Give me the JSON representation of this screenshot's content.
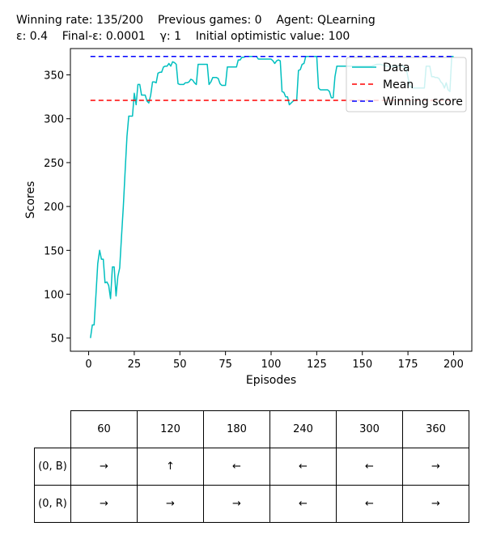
{
  "header": {
    "line1": "Winning rate: 135/200    Previous games: 0    Agent: QLearning",
    "line2": "ε: 0.4    Final-ε: 0.0001    γ: 1    Initial optimistic value: 100"
  },
  "chart_data": {
    "type": "line",
    "xlabel": "Episodes",
    "ylabel": "Scores",
    "xlim": [
      -10,
      210
    ],
    "ylim": [
      35,
      380
    ],
    "xticks": [
      0,
      25,
      50,
      75,
      100,
      125,
      150,
      175,
      200
    ],
    "yticks": [
      50,
      100,
      150,
      200,
      250,
      300,
      350
    ],
    "legend_position": "top-right",
    "legend": [
      "Data",
      "Mean",
      "Winning score"
    ],
    "series": [
      {
        "name": "Data",
        "color": "#00bfbf",
        "points": [
          [
            1,
            50
          ],
          [
            2,
            65
          ],
          [
            3,
            65
          ],
          [
            4,
            100
          ],
          [
            5,
            135
          ],
          [
            6,
            150
          ],
          [
            7,
            140
          ],
          [
            8,
            140
          ],
          [
            9,
            113
          ],
          [
            10,
            114
          ],
          [
            11,
            110
          ],
          [
            12,
            95
          ],
          [
            13,
            131
          ],
          [
            14,
            131
          ],
          [
            15,
            98
          ],
          [
            16,
            120
          ],
          [
            17,
            130
          ],
          [
            18,
            165
          ],
          [
            19,
            200
          ],
          [
            20,
            240
          ],
          [
            21,
            280
          ],
          [
            22,
            303
          ],
          [
            23,
            303
          ],
          [
            24,
            303
          ],
          [
            25,
            329
          ],
          [
            26,
            316
          ],
          [
            27,
            339
          ],
          [
            28,
            339
          ],
          [
            29,
            327
          ],
          [
            30,
            327
          ],
          [
            31,
            327
          ],
          [
            32,
            320
          ],
          [
            33,
            318
          ],
          [
            34,
            327
          ],
          [
            35,
            342
          ],
          [
            36,
            342
          ],
          [
            37,
            341
          ],
          [
            38,
            352
          ],
          [
            39,
            353
          ],
          [
            40,
            353
          ],
          [
            41,
            359
          ],
          [
            42,
            360
          ],
          [
            43,
            360
          ],
          [
            44,
            363
          ],
          [
            45,
            360
          ],
          [
            46,
            365
          ],
          [
            47,
            364
          ],
          [
            48,
            362
          ],
          [
            49,
            340
          ],
          [
            50,
            339
          ],
          [
            51,
            339
          ],
          [
            52,
            339
          ],
          [
            53,
            341
          ],
          [
            54,
            341
          ],
          [
            55,
            342
          ],
          [
            56,
            345
          ],
          [
            57,
            344
          ],
          [
            58,
            341
          ],
          [
            59,
            339
          ],
          [
            60,
            362
          ],
          [
            61,
            362
          ],
          [
            62,
            362
          ],
          [
            63,
            362
          ],
          [
            64,
            362
          ],
          [
            65,
            362
          ],
          [
            66,
            339
          ],
          [
            67,
            342
          ],
          [
            68,
            347
          ],
          [
            69,
            347
          ],
          [
            70,
            347
          ],
          [
            71,
            346
          ],
          [
            72,
            340
          ],
          [
            73,
            338
          ],
          [
            74,
            338
          ],
          [
            75,
            338
          ],
          [
            76,
            359
          ],
          [
            77,
            359
          ],
          [
            78,
            359
          ],
          [
            79,
            359
          ],
          [
            80,
            359
          ],
          [
            81,
            359
          ],
          [
            82,
            367
          ],
          [
            83,
            367
          ],
          [
            84,
            370
          ],
          [
            85,
            370
          ],
          [
            86,
            371
          ],
          [
            87,
            371
          ],
          [
            88,
            371
          ],
          [
            89,
            371
          ],
          [
            90,
            371
          ],
          [
            91,
            371
          ],
          [
            92,
            371
          ],
          [
            93,
            368
          ],
          [
            94,
            368
          ],
          [
            95,
            368
          ],
          [
            96,
            368
          ],
          [
            97,
            368
          ],
          [
            98,
            368
          ],
          [
            99,
            368
          ],
          [
            100,
            368
          ],
          [
            101,
            366
          ],
          [
            102,
            363
          ],
          [
            103,
            366
          ],
          [
            104,
            367
          ],
          [
            105,
            366
          ],
          [
            106,
            331
          ],
          [
            107,
            330
          ],
          [
            108,
            325
          ],
          [
            109,
            325
          ],
          [
            110,
            316
          ],
          [
            111,
            318
          ],
          [
            112,
            320
          ],
          [
            113,
            321
          ],
          [
            114,
            321
          ],
          [
            115,
            355
          ],
          [
            116,
            356
          ],
          [
            117,
            362
          ],
          [
            118,
            363
          ],
          [
            119,
            371
          ],
          [
            120,
            371
          ],
          [
            121,
            371
          ],
          [
            122,
            371
          ],
          [
            123,
            371
          ],
          [
            124,
            371
          ],
          [
            125,
            371
          ],
          [
            126,
            335
          ],
          [
            127,
            333
          ],
          [
            128,
            333
          ],
          [
            129,
            333
          ],
          [
            130,
            333
          ],
          [
            131,
            333
          ],
          [
            132,
            331
          ],
          [
            133,
            324
          ],
          [
            134,
            324
          ],
          [
            135,
            348
          ],
          [
            136,
            360
          ],
          [
            137,
            360
          ],
          [
            138,
            360
          ],
          [
            139,
            360
          ],
          [
            140,
            360
          ],
          [
            141,
            360
          ],
          [
            142,
            360
          ],
          [
            143,
            360
          ],
          [
            144,
            360
          ],
          [
            145,
            360
          ],
          [
            146,
            360
          ],
          [
            147,
            360
          ],
          [
            148,
            360
          ],
          [
            149,
            360
          ],
          [
            150,
            360
          ],
          [
            152,
            360
          ],
          [
            155,
            360
          ],
          [
            158,
            362
          ],
          [
            160,
            362
          ],
          [
            163,
            360
          ],
          [
            166,
            360
          ],
          [
            169,
            360
          ],
          [
            172,
            360
          ],
          [
            174,
            358
          ],
          [
            176,
            337
          ],
          [
            177,
            336
          ],
          [
            178,
            335
          ],
          [
            180,
            335
          ],
          [
            182,
            335
          ],
          [
            184,
            335
          ],
          [
            185,
            360
          ],
          [
            186,
            360
          ],
          [
            187,
            360
          ],
          [
            188,
            348
          ],
          [
            189,
            348
          ],
          [
            190,
            347
          ],
          [
            191,
            347
          ],
          [
            192,
            346
          ],
          [
            193,
            342
          ],
          [
            194,
            340
          ],
          [
            195,
            335
          ],
          [
            196,
            341
          ],
          [
            197,
            333
          ],
          [
            198,
            331
          ],
          [
            199,
            371
          ],
          [
            200,
            371
          ]
        ]
      },
      {
        "name": "Mean",
        "color": "#ff0000",
        "x": [
          1,
          200
        ],
        "y": 321
      },
      {
        "name": "Winning score",
        "color": "#0000ff",
        "x": [
          1,
          200
        ],
        "y": 371
      }
    ]
  },
  "policy_table": {
    "columns": [
      "60",
      "120",
      "180",
      "240",
      "300",
      "360"
    ],
    "rows": [
      {
        "label": "(0, B)",
        "cells": [
          "→",
          "↑",
          "←",
          "←",
          "←",
          "→"
        ]
      },
      {
        "label": "(0, R)",
        "cells": [
          "→",
          "→",
          "→",
          "←",
          "←",
          "→"
        ]
      }
    ]
  }
}
